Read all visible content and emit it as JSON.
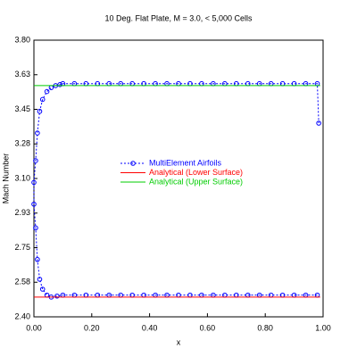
{
  "chart_data": {
    "type": "line",
    "title": "10 Deg. Flat Plate, M = 3.0, < 5,000 Cells",
    "xlabel": "x",
    "ylabel": "Mach Number",
    "xlim": [
      0,
      1
    ],
    "ylim": [
      2.4,
      3.8
    ],
    "xticks": [
      {
        "value": 0,
        "label": "0.00"
      },
      {
        "value": 0.2,
        "label": "0.20"
      },
      {
        "value": 0.4,
        "label": "0.40"
      },
      {
        "value": 0.6,
        "label": "0.60"
      },
      {
        "value": 0.8,
        "label": "0.80"
      },
      {
        "value": 1,
        "label": "1.00"
      }
    ],
    "yticks": [
      {
        "value": 2.4,
        "label": "2.40"
      },
      {
        "value": 2.575,
        "label": "2.58"
      },
      {
        "value": 2.75,
        "label": "2.75"
      },
      {
        "value": 2.925,
        "label": "2.93"
      },
      {
        "value": 3.1,
        "label": "3.10"
      },
      {
        "value": 3.275,
        "label": "3.28"
      },
      {
        "value": 3.45,
        "label": "3.45"
      },
      {
        "value": 3.625,
        "label": "3.63"
      },
      {
        "value": 3.8,
        "label": "3.80"
      }
    ],
    "legend": "center",
    "series": [
      {
        "name": "MultiElement Airfoils",
        "color": "#0000ff",
        "markers": true,
        "dashed": true,
        "x": [
          0.98,
          0.94,
          0.9,
          0.86,
          0.82,
          0.78,
          0.74,
          0.7,
          0.66,
          0.62,
          0.58,
          0.54,
          0.5,
          0.46,
          0.42,
          0.38,
          0.34,
          0.3,
          0.26,
          0.22,
          0.18,
          0.14,
          0.1,
          0.08,
          0.06,
          0.045,
          0.03,
          0.02,
          0.012,
          0.006,
          0,
          0,
          0.006,
          0.012,
          0.02,
          0.03,
          0.045,
          0.06,
          0.075,
          0.09,
          0.1,
          0.14,
          0.18,
          0.22,
          0.26,
          0.3,
          0.34,
          0.38,
          0.42,
          0.46,
          0.5,
          0.54,
          0.58,
          0.62,
          0.66,
          0.7,
          0.74,
          0.78,
          0.82,
          0.86,
          0.9,
          0.94,
          0.98,
          0.985
        ],
        "values": [
          2.51,
          2.51,
          2.51,
          2.51,
          2.51,
          2.51,
          2.51,
          2.51,
          2.51,
          2.51,
          2.51,
          2.51,
          2.51,
          2.51,
          2.51,
          2.51,
          2.51,
          2.51,
          2.51,
          2.51,
          2.51,
          2.51,
          2.51,
          2.505,
          2.5,
          2.51,
          2.54,
          2.59,
          2.69,
          2.85,
          2.97,
          3.08,
          3.19,
          3.33,
          3.44,
          3.5,
          3.54,
          3.56,
          3.57,
          3.575,
          3.58,
          3.58,
          3.58,
          3.58,
          3.58,
          3.58,
          3.58,
          3.58,
          3.58,
          3.58,
          3.58,
          3.58,
          3.58,
          3.58,
          3.58,
          3.58,
          3.58,
          3.58,
          3.58,
          3.58,
          3.58,
          3.58,
          3.58,
          3.38
        ]
      },
      {
        "name": "Analytical (Lower Surface)",
        "color": "#ff0000",
        "x": [
          0,
          0.99
        ],
        "values": [
          2.5,
          2.5
        ]
      },
      {
        "name": "Analytical (Upper Surface)",
        "color": "#00cc00",
        "x": [
          0,
          0.99
        ],
        "values": [
          3.57,
          3.57
        ]
      }
    ]
  }
}
